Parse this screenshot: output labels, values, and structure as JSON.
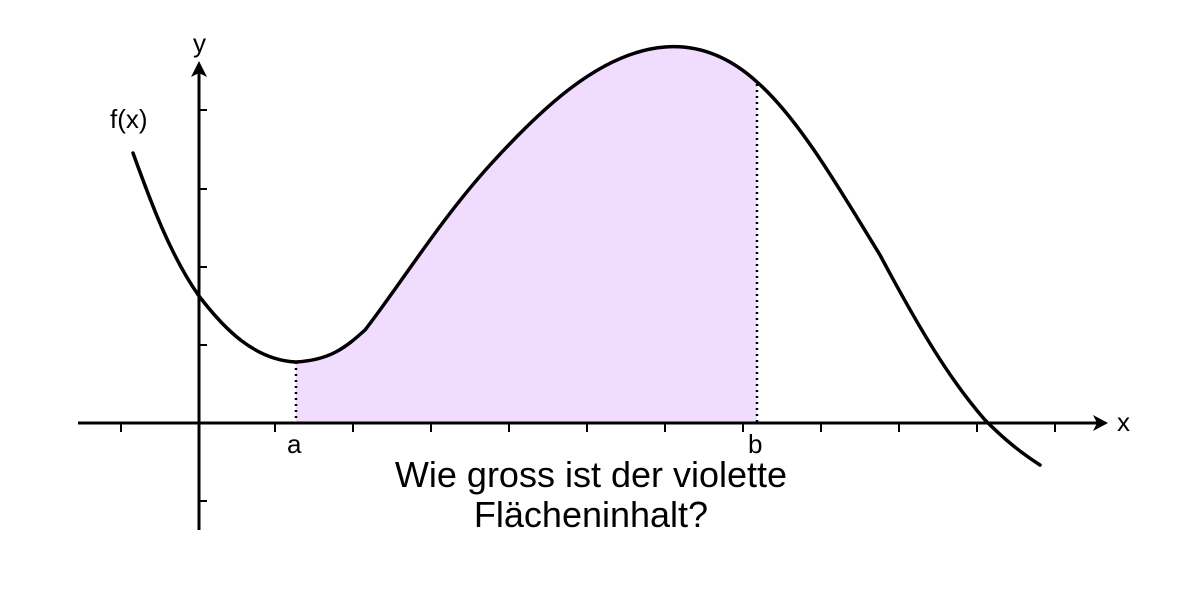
{
  "axes": {
    "x_label": "x",
    "y_label": "y"
  },
  "function_label": "f(x)",
  "bounds": {
    "a_label": "a",
    "b_label": "b"
  },
  "question": {
    "line1": "Wie gross ist der violette",
    "line2": "Flächeninhalt?"
  },
  "colors": {
    "area_fill": "#f0dcfc",
    "curve": "#000000",
    "a_label": "#1f3fd6",
    "b_label": "#e31b1b"
  }
}
